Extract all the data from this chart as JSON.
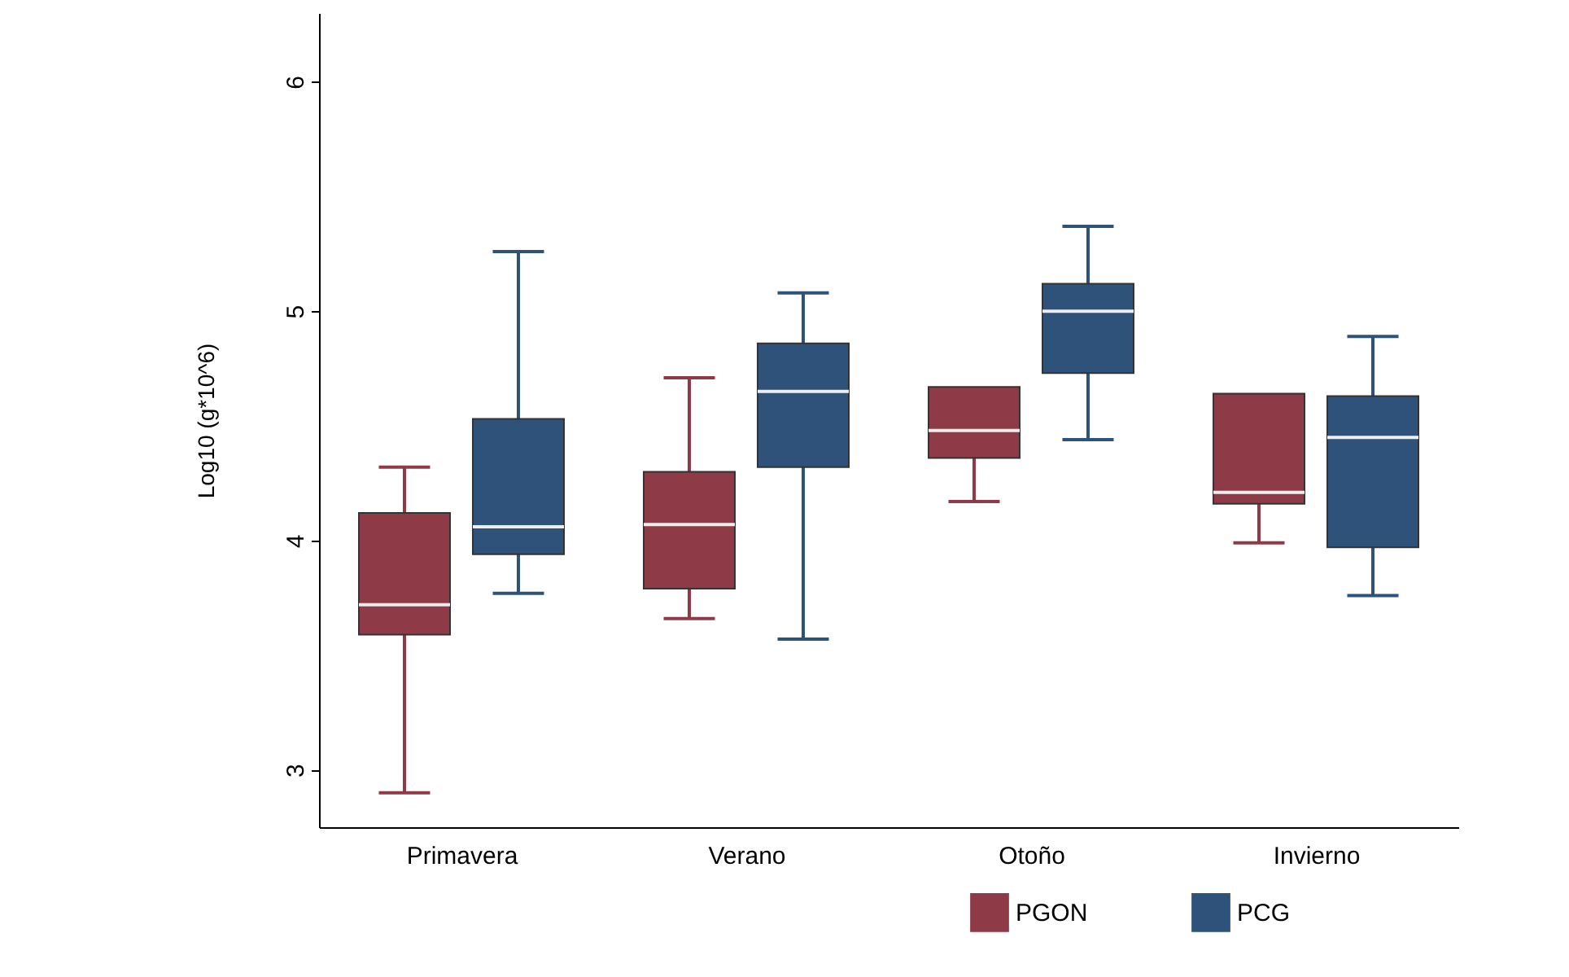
{
  "chart_data": {
    "type": "box",
    "ylabel": "Log10 (g*10^6)",
    "categories": [
      "Primavera",
      "Verano",
      "Otoño",
      "Invierno"
    ],
    "ylim": [
      2.75,
      6.3
    ],
    "yticks": [
      3,
      4,
      5,
      6
    ],
    "grid": false,
    "legend": "bottom right",
    "series": [
      {
        "name": "PGON",
        "color": "#8f3b47",
        "boxes": [
          {
            "low": 2.9,
            "q1": 3.59,
            "median": 3.72,
            "q3": 4.12,
            "high": 4.32
          },
          {
            "low": 3.66,
            "q1": 3.79,
            "median": 4.07,
            "q3": 4.3,
            "high": 4.71
          },
          {
            "low": 4.17,
            "q1": 4.36,
            "median": 4.48,
            "q3": 4.67,
            "high": 4.67
          },
          {
            "low": 3.99,
            "q1": 4.16,
            "median": 4.21,
            "q3": 4.64,
            "high": 4.64
          }
        ]
      },
      {
        "name": "PCG",
        "color": "#2e5279",
        "boxes": [
          {
            "low": 3.77,
            "q1": 3.94,
            "median": 4.06,
            "q3": 4.53,
            "high": 5.26
          },
          {
            "low": 3.57,
            "q1": 4.32,
            "median": 4.65,
            "q3": 4.86,
            "high": 5.08
          },
          {
            "low": 4.44,
            "q1": 4.73,
            "median": 5.0,
            "q3": 5.12,
            "high": 5.37
          },
          {
            "low": 3.76,
            "q1": 3.97,
            "median": 4.45,
            "q3": 4.63,
            "high": 4.89
          }
        ]
      }
    ]
  }
}
